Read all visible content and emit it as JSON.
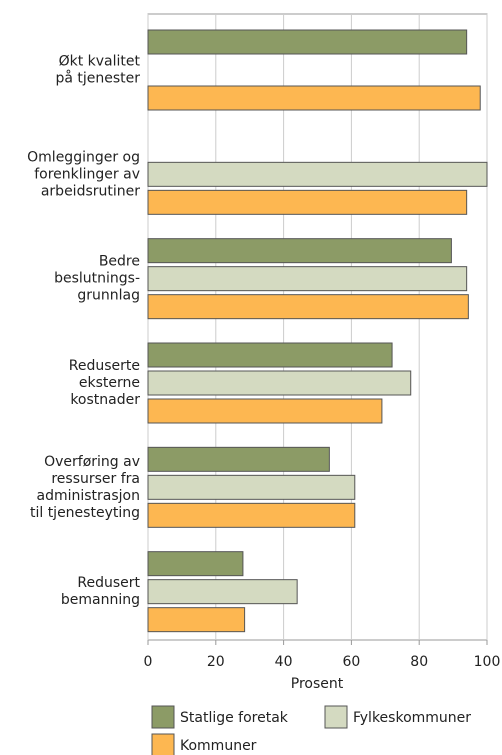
{
  "chart_data": {
    "type": "hbar",
    "categories": [
      "Økt kvalitet\npå tjenester",
      "Omlegginger og\nforenklinger av\narbeidsrutiner",
      "Bedre\nbeslutnings-\ngrunnlag",
      "Reduserte\neksterne\nkostnader",
      "Overføring av\nressurser fra\nadministrasjon\ntil tjenesteyting",
      "Redusert\nbemanning"
    ],
    "series": [
      {
        "name": "Statlige foretak",
        "color": "#8c9b66",
        "values": [
          94,
          0,
          89.5,
          72,
          53.5,
          28
        ]
      },
      {
        "name": "Fylkeskommuner",
        "color": "#d4dac1",
        "values": [
          0,
          100,
          94,
          77.5,
          61,
          44
        ]
      },
      {
        "name": "Kommuner",
        "color": "#fdb751",
        "values": [
          98,
          94,
          94.5,
          69,
          61,
          28.5
        ]
      }
    ],
    "xlabel": "Prosent",
    "xlim": [
      0,
      100
    ],
    "xticks": [
      0,
      20,
      40,
      60,
      80,
      100
    ],
    "grid": true
  }
}
